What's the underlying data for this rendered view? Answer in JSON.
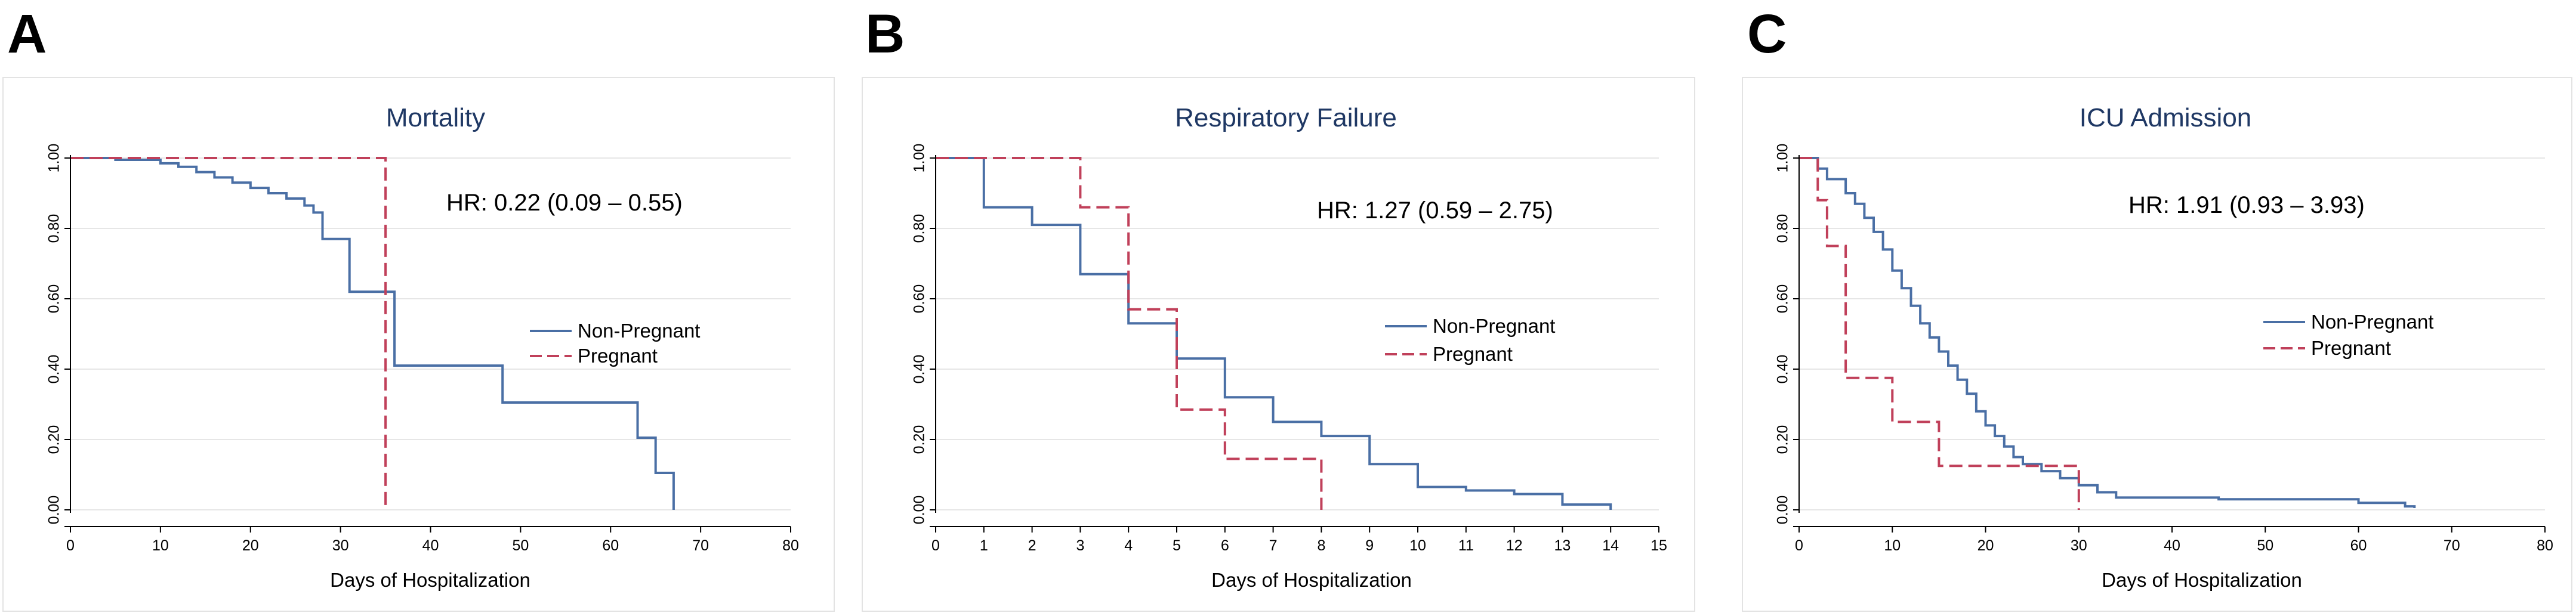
{
  "colors": {
    "non_pregnant": "#4a6fa5",
    "pregnant": "#c0405a",
    "title": "#1f3864",
    "grid": "#e6e6e6"
  },
  "chart_data": [
    {
      "type": "line",
      "panel_letter": "A",
      "title": "Mortality",
      "xlabel": "Days of Hospitalization",
      "ylabel": "",
      "xlim": [
        0,
        80
      ],
      "ylim": [
        0,
        1
      ],
      "x_ticks": [
        "0",
        "10",
        "20",
        "30",
        "40",
        "50",
        "60",
        "70",
        "80"
      ],
      "y_ticks": [
        "0.00",
        "0.20",
        "0.40",
        "0.60",
        "0.80",
        "1.00"
      ],
      "annotation": "HR: 0.22 (0.09 – 0.55)",
      "legend_position": "right",
      "series": [
        {
          "name": "Non-Pregnant",
          "style": "solid",
          "color": "#4a6fa5",
          "x": [
            0,
            5,
            10,
            12,
            14,
            16,
            18,
            20,
            22,
            24,
            26,
            27,
            28,
            31,
            35,
            36,
            48,
            63,
            65,
            67,
            67
          ],
          "y": [
            1.0,
            0.995,
            0.985,
            0.975,
            0.96,
            0.945,
            0.93,
            0.915,
            0.9,
            0.885,
            0.865,
            0.845,
            0.77,
            0.62,
            0.62,
            0.41,
            0.305,
            0.205,
            0.105,
            0.105,
            0.0
          ]
        },
        {
          "name": "Pregnant",
          "style": "dashed",
          "color": "#c0405a",
          "x": [
            0,
            35,
            35
          ],
          "y": [
            1.0,
            1.0,
            0.0
          ]
        }
      ]
    },
    {
      "type": "line",
      "panel_letter": "B",
      "title": "Respiratory Failure",
      "xlabel": "Days of Hospitalization",
      "ylabel": "",
      "xlim": [
        0,
        15
      ],
      "ylim": [
        0,
        1
      ],
      "x_ticks": [
        "0",
        "1",
        "2",
        "3",
        "4",
        "5",
        "6",
        "7",
        "8",
        "9",
        "10",
        "11",
        "12",
        "13",
        "14",
        "15"
      ],
      "y_ticks": [
        "0.00",
        "0.20",
        "0.40",
        "0.60",
        "0.80",
        "1.00"
      ],
      "annotation": "HR: 1.27 (0.59 – 2.75)",
      "legend_position": "right",
      "series": [
        {
          "name": "Non-Pregnant",
          "style": "solid",
          "color": "#4a6fa5",
          "x": [
            0,
            1,
            2,
            3,
            4,
            5,
            6,
            7,
            8,
            9,
            10,
            11,
            12,
            13,
            14,
            14
          ],
          "y": [
            1.0,
            0.86,
            0.81,
            0.67,
            0.53,
            0.43,
            0.32,
            0.25,
            0.21,
            0.13,
            0.065,
            0.055,
            0.045,
            0.015,
            0.015,
            0.0
          ]
        },
        {
          "name": "Pregnant",
          "style": "dashed",
          "color": "#c0405a",
          "x": [
            0,
            3,
            4,
            5,
            6,
            8,
            8
          ],
          "y": [
            1.0,
            0.86,
            0.57,
            0.285,
            0.145,
            0.145,
            0.0
          ]
        }
      ]
    },
    {
      "type": "line",
      "panel_letter": "C",
      "title": "ICU Admission",
      "xlabel": "Days of Hospitalization",
      "ylabel": "",
      "xlim": [
        0,
        80
      ],
      "ylim": [
        0,
        1
      ],
      "x_ticks": [
        "0",
        "10",
        "20",
        "30",
        "40",
        "50",
        "60",
        "70",
        "80"
      ],
      "y_ticks": [
        "0.00",
        "0.20",
        "0.40",
        "0.60",
        "0.80",
        "1.00"
      ],
      "annotation": "HR: 1.91 (0.93 – 3.93)",
      "legend_position": "right",
      "series": [
        {
          "name": "Non-Pregnant",
          "style": "solid",
          "color": "#4a6fa5",
          "x": [
            0,
            2,
            3,
            5,
            6,
            7,
            8,
            9,
            10,
            11,
            12,
            13,
            14,
            15,
            16,
            17,
            18,
            19,
            20,
            21,
            22,
            23,
            24,
            26,
            28,
            30,
            32,
            34,
            45,
            60,
            65,
            66
          ],
          "y": [
            1.0,
            0.97,
            0.94,
            0.9,
            0.87,
            0.83,
            0.79,
            0.74,
            0.68,
            0.63,
            0.58,
            0.53,
            0.49,
            0.45,
            0.41,
            0.37,
            0.33,
            0.28,
            0.24,
            0.21,
            0.18,
            0.15,
            0.13,
            0.11,
            0.09,
            0.07,
            0.05,
            0.035,
            0.03,
            0.02,
            0.01,
            0.005
          ]
        },
        {
          "name": "Pregnant",
          "style": "dashed",
          "color": "#c0405a",
          "x": [
            0,
            1,
            2,
            3,
            5,
            9,
            10,
            15,
            30,
            30
          ],
          "y": [
            1.0,
            1.0,
            0.88,
            0.75,
            0.375,
            0.375,
            0.25,
            0.125,
            0.125,
            0.0
          ]
        }
      ]
    }
  ]
}
